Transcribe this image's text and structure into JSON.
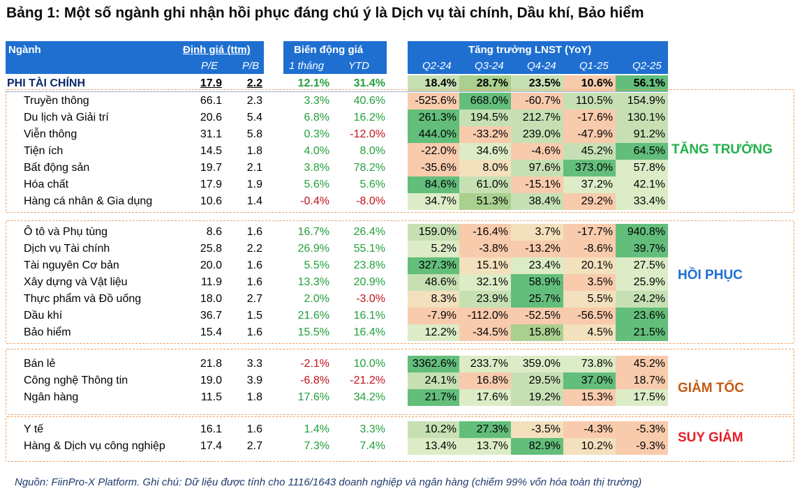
{
  "title": "Bảng 1: Một số ngành ghi nhận hồi phục đáng chú ý là Dịch vụ tài chính, Dầu khí, Bảo hiểm",
  "header": {
    "sector": "Ngành",
    "valuation": "Định giá (ttm)",
    "pe": "P/E",
    "pb": "P/B",
    "price_change": "Biến động giá",
    "one_month": "1 tháng",
    "ytd": "YTD",
    "growth": "Tăng trưởng LNST (YoY)",
    "quarters": [
      "Q2-24",
      "Q3-24",
      "Q4-24",
      "Q1-25",
      "Q2-25"
    ]
  },
  "total_row": {
    "name": "PHI TÀI CHÍNH",
    "pe": "17.9",
    "pb": "2.2",
    "m1": "12.1%",
    "ytd": "31.4%",
    "growth": [
      "18.4%",
      "28.7%",
      "23.5%",
      "10.6%",
      "56.1%"
    ],
    "colors": [
      "#c6e0b4",
      "#a9d08e",
      "#c6e0b4",
      "#f8cbad",
      "#63be7b"
    ]
  },
  "groups": [
    {
      "label": "TĂNG TRƯỞNG",
      "label_color": "#22b04a",
      "rows": [
        {
          "name": "Truyền thông",
          "pe": "66.1",
          "pb": "2.3",
          "m1": "3.3%",
          "ytd": "40.6%",
          "growth": [
            "-525.6%",
            "668.0%",
            "-60.7%",
            "110.5%",
            "154.9%"
          ],
          "colors": [
            "#f8cbad",
            "#63be7b",
            "#f8cbad",
            "#c6e0b4",
            "#c6e0b4"
          ]
        },
        {
          "name": "Du lịch và Giải trí",
          "pe": "20.6",
          "pb": "5.4",
          "m1": "6.8%",
          "ytd": "16.2%",
          "growth": [
            "261.3%",
            "194.5%",
            "212.7%",
            "-17.6%",
            "130.1%"
          ],
          "colors": [
            "#63be7b",
            "#c6e0b4",
            "#c6e0b4",
            "#f8cbad",
            "#c6e0b4"
          ]
        },
        {
          "name": "Viễn thông",
          "pe": "31.1",
          "pb": "5.8",
          "m1": "0.3%",
          "ytd": "-12.0%",
          "growth": [
            "444.0%",
            "-33.2%",
            "239.0%",
            "-47.9%",
            "91.2%"
          ],
          "colors": [
            "#63be7b",
            "#f8cbad",
            "#c6e0b4",
            "#f8cbad",
            "#c6e0b4"
          ]
        },
        {
          "name": "Tiện ích",
          "pe": "14.5",
          "pb": "1.8",
          "m1": "4.0%",
          "ytd": "8.0%",
          "growth": [
            "-22.0%",
            "34.6%",
            "-4.6%",
            "45.2%",
            "64.5%"
          ],
          "colors": [
            "#f8cbad",
            "#dcecc6",
            "#f8cbad",
            "#c6e0b4",
            "#63be7b"
          ]
        },
        {
          "name": "Bất động sản",
          "pe": "19.7",
          "pb": "2.1",
          "m1": "3.8%",
          "ytd": "78.2%",
          "growth": [
            "-35.6%",
            "8.0%",
            "97.6%",
            "373.0%",
            "57.8%"
          ],
          "colors": [
            "#f8cbad",
            "#f3e0bd",
            "#c6e0b4",
            "#63be7b",
            "#dcecc6"
          ]
        },
        {
          "name": "Hóa chất",
          "pe": "17.9",
          "pb": "1.9",
          "m1": "5.6%",
          "ytd": "5.6%",
          "growth": [
            "84.6%",
            "61.0%",
            "-15.1%",
            "37.2%",
            "42.1%"
          ],
          "colors": [
            "#63be7b",
            "#c6e0b4",
            "#f8cbad",
            "#dcecc6",
            "#dcecc6"
          ]
        },
        {
          "name": "Hàng cá nhân & Gia dụng",
          "pe": "10.6",
          "pb": "1.4",
          "m1": "-0.4%",
          "ytd": "-8.0%",
          "growth": [
            "34.7%",
            "51.3%",
            "38.4%",
            "29.2%",
            "33.4%"
          ],
          "colors": [
            "#dcecc6",
            "#a9d08e",
            "#c6e0b4",
            "#f8cbad",
            "#dcecc6"
          ]
        }
      ]
    },
    {
      "label": "HỒI PHỤC",
      "label_color": "#1f6fd1",
      "rows": [
        {
          "name": "Ô tô và Phụ tùng",
          "pe": "8.6",
          "pb": "1.6",
          "m1": "16.7%",
          "ytd": "26.4%",
          "growth": [
            "159.0%",
            "-16.4%",
            "3.7%",
            "-17.7%",
            "940.8%"
          ],
          "colors": [
            "#c6e0b4",
            "#f8cbad",
            "#f3e0bd",
            "#f8cbad",
            "#63be7b"
          ]
        },
        {
          "name": "Dịch vụ Tài chính",
          "pe": "25.8",
          "pb": "2.2",
          "m1": "26.9%",
          "ytd": "55.1%",
          "growth": [
            "5.2%",
            "-3.8%",
            "-13.2%",
            "-8.6%",
            "39.7%"
          ],
          "colors": [
            "#dcecc6",
            "#f8cbad",
            "#f8cbad",
            "#f8cbad",
            "#63be7b"
          ]
        },
        {
          "name": "Tài nguyên Cơ bản",
          "pe": "20.0",
          "pb": "1.6",
          "m1": "5.5%",
          "ytd": "23.8%",
          "growth": [
            "327.3%",
            "15.1%",
            "23.4%",
            "20.1%",
            "27.5%"
          ],
          "colors": [
            "#63be7b",
            "#f3e0bd",
            "#dcecc6",
            "#f3e0bd",
            "#dcecc6"
          ]
        },
        {
          "name": "Xây dựng và Vật liệu",
          "pe": "11.9",
          "pb": "1.6",
          "m1": "13.3%",
          "ytd": "20.9%",
          "growth": [
            "48.6%",
            "32.1%",
            "58.9%",
            "3.5%",
            "25.9%"
          ],
          "colors": [
            "#c6e0b4",
            "#dcecc6",
            "#63be7b",
            "#f8cbad",
            "#dcecc6"
          ]
        },
        {
          "name": "Thực phẩm và Đồ uống",
          "pe": "18.0",
          "pb": "2.7",
          "m1": "2.0%",
          "ytd": "-3.0%",
          "growth": [
            "8.3%",
            "23.9%",
            "25.7%",
            "5.5%",
            "24.2%"
          ],
          "colors": [
            "#f3e0bd",
            "#c6e0b4",
            "#63be7b",
            "#f3e0bd",
            "#c6e0b4"
          ]
        },
        {
          "name": "Dầu khí",
          "pe": "36.7",
          "pb": "1.5",
          "m1": "21.6%",
          "ytd": "16.1%",
          "growth": [
            "-7.9%",
            "-112.0%",
            "-52.5%",
            "-56.5%",
            "23.6%"
          ],
          "colors": [
            "#f8cbad",
            "#f8cbad",
            "#f8cbad",
            "#f8cbad",
            "#63be7b"
          ]
        },
        {
          "name": "Bảo hiểm",
          "pe": "15.4",
          "pb": "1.6",
          "m1": "15.5%",
          "ytd": "16.4%",
          "growth": [
            "12.2%",
            "-34.5%",
            "15.8%",
            "4.5%",
            "21.5%"
          ],
          "colors": [
            "#dcecc6",
            "#f8cbad",
            "#a9d08e",
            "#f3e0bd",
            "#63be7b"
          ]
        }
      ]
    },
    {
      "label": "GIẢM TỐC",
      "label_color": "#c55a11",
      "rows": [
        {
          "name": "Bán lẻ",
          "pe": "21.8",
          "pb": "3.3",
          "m1": "-2.1%",
          "ytd": "10.0%",
          "growth": [
            "3362.6%",
            "233.7%",
            "359.0%",
            "73.8%",
            "45.2%"
          ],
          "colors": [
            "#63be7b",
            "#dcecc6",
            "#dcecc6",
            "#dcecc6",
            "#f8cbad"
          ]
        },
        {
          "name": "Công nghệ Thông tin",
          "pe": "19.0",
          "pb": "3.9",
          "m1": "-6.8%",
          "ytd": "-21.2%",
          "growth": [
            "24.1%",
            "16.8%",
            "29.5%",
            "37.0%",
            "18.7%"
          ],
          "colors": [
            "#c6e0b4",
            "#f8cbad",
            "#c6e0b4",
            "#63be7b",
            "#f8cbad"
          ]
        },
        {
          "name": "Ngân hàng",
          "pe": "11.5",
          "pb": "1.8",
          "m1": "17.6%",
          "ytd": "34.2%",
          "growth": [
            "21.7%",
            "17.6%",
            "19.2%",
            "15.3%",
            "17.5%"
          ],
          "colors": [
            "#63be7b",
            "#dcecc6",
            "#c6e0b4",
            "#f8cbad",
            "#dcecc6"
          ]
        }
      ]
    },
    {
      "label": "SUY GIẢM",
      "label_color": "#e41e26",
      "rows": [
        {
          "name": "Y tế",
          "pe": "16.1",
          "pb": "1.6",
          "m1": "1.4%",
          "ytd": "3.3%",
          "growth": [
            "10.2%",
            "27.3%",
            "-3.5%",
            "-4.3%",
            "-5.3%"
          ],
          "colors": [
            "#c6e0b4",
            "#63be7b",
            "#f3e0bd",
            "#f8cbad",
            "#f8cbad"
          ]
        },
        {
          "name": "Hàng & Dịch vụ công nghiệp",
          "pe": "17.4",
          "pb": "2.7",
          "m1": "7.3%",
          "ytd": "7.4%",
          "growth": [
            "13.4%",
            "13.7%",
            "82.9%",
            "10.2%",
            "-9.3%"
          ],
          "colors": [
            "#dcecc6",
            "#dcecc6",
            "#63be7b",
            "#f3e0bd",
            "#f8cbad"
          ]
        }
      ]
    }
  ],
  "footer": "Nguồn: FiinPro-X Platform. Ghi chú: Dữ liệu được tính cho 1116/1643 doanh nghiệp và ngân hàng (chiếm 99% vốn hóa toàn thị trường)"
}
